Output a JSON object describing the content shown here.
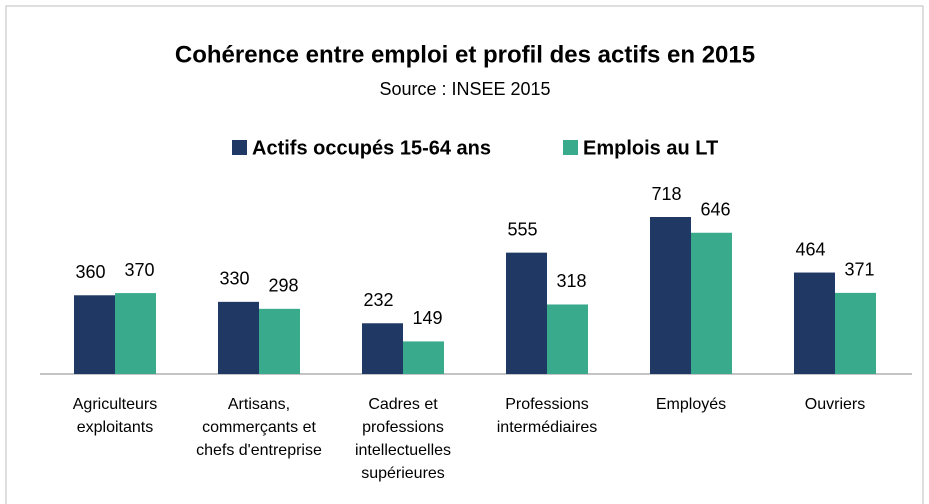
{
  "chart_data": {
    "type": "bar",
    "title": "Cohérence entre emploi et profil des actifs en 2015",
    "subtitle": "Source  : INSEE 2015",
    "categories": [
      "Agriculteurs exploitants",
      "Artisans, commerçants et chefs d'entreprise",
      "Cadres et professions intellectuelles supérieures",
      "Professions intermédiaires",
      "Employés",
      "Ouvriers"
    ],
    "series": [
      {
        "name": "Actifs occupés 15-64 ans",
        "color": "#1f3864",
        "values": [
          360,
          330,
          232,
          555,
          718,
          464
        ]
      },
      {
        "name": "Emplois au LT",
        "color": "#3aaa8c",
        "values": [
          370,
          298,
          149,
          318,
          646,
          371
        ]
      }
    ],
    "legend": "top"
  }
}
